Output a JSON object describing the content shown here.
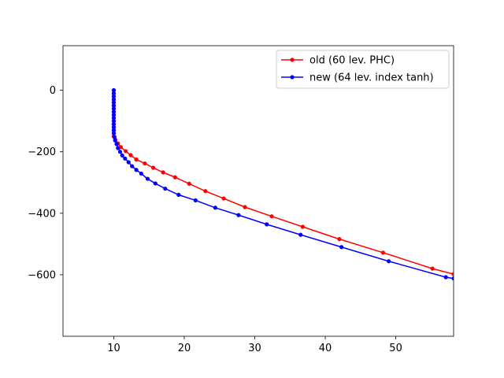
{
  "chart_data": {
    "type": "line",
    "title": "",
    "xlabel": "",
    "ylabel": "",
    "xlim": [
      2.8,
      58.2
    ],
    "ylim": [
      -800,
      145
    ],
    "xticks": [
      10,
      20,
      30,
      40,
      50
    ],
    "yticks": [
      -600,
      -400,
      -200,
      0
    ],
    "ytick_labels": [
      "−600",
      "−400",
      "−200",
      "0"
    ],
    "grid": false,
    "legend_position": "top-right",
    "series": [
      {
        "name": "old (60 lev. PHC)",
        "color": "#ff0000",
        "marker": "dot",
        "x": [
          10.0,
          10.0,
          10.0,
          10.0,
          10.0,
          10.0,
          10.0,
          10.0,
          10.0,
          10.0,
          10.0,
          10.0,
          10.0,
          10.0,
          10.0,
          10.0,
          10.2,
          10.6,
          11.0,
          11.7,
          12.4,
          13.2,
          14.4,
          15.6,
          17.0,
          18.7,
          20.7,
          23.0,
          25.6,
          28.6,
          32.4,
          36.8,
          42.0,
          48.2,
          55.2,
          58.2
        ],
        "y": [
          0,
          -10,
          -20,
          -30,
          -40,
          -50,
          -60,
          -70,
          -80,
          -90,
          -100,
          -110,
          -120,
          -130,
          -140,
          -150,
          -160,
          -173,
          -185,
          -198,
          -211,
          -225,
          -238,
          -252,
          -267,
          -283,
          -304,
          -328,
          -352,
          -380,
          -410,
          -444,
          -484,
          -528,
          -580,
          -598
        ]
      },
      {
        "name": "new (64 lev. index tanh)",
        "color": "#0000ff",
        "marker": "dot",
        "x": [
          10.0,
          10.0,
          10.0,
          10.0,
          10.0,
          10.0,
          10.0,
          10.0,
          10.0,
          10.0,
          10.0,
          10.0,
          10.0,
          10.0,
          10.0,
          10.1,
          10.2,
          10.4,
          10.6,
          10.9,
          11.2,
          11.6,
          12.1,
          12.6,
          13.2,
          13.9,
          14.8,
          15.9,
          17.3,
          19.2,
          21.6,
          24.4,
          27.7,
          31.7,
          36.5,
          42.3,
          49.0,
          57.1,
          58.2
        ],
        "y": [
          0,
          -10,
          -20,
          -30,
          -40,
          -50,
          -60,
          -70,
          -80,
          -90,
          -100,
          -110,
          -120,
          -130,
          -140,
          -152,
          -163,
          -175,
          -188,
          -200,
          -212,
          -222,
          -234,
          -247,
          -259,
          -271,
          -288,
          -303,
          -320,
          -340,
          -358,
          -382,
          -406,
          -436,
          -470,
          -510,
          -556,
          -608,
          -612
        ]
      }
    ]
  }
}
